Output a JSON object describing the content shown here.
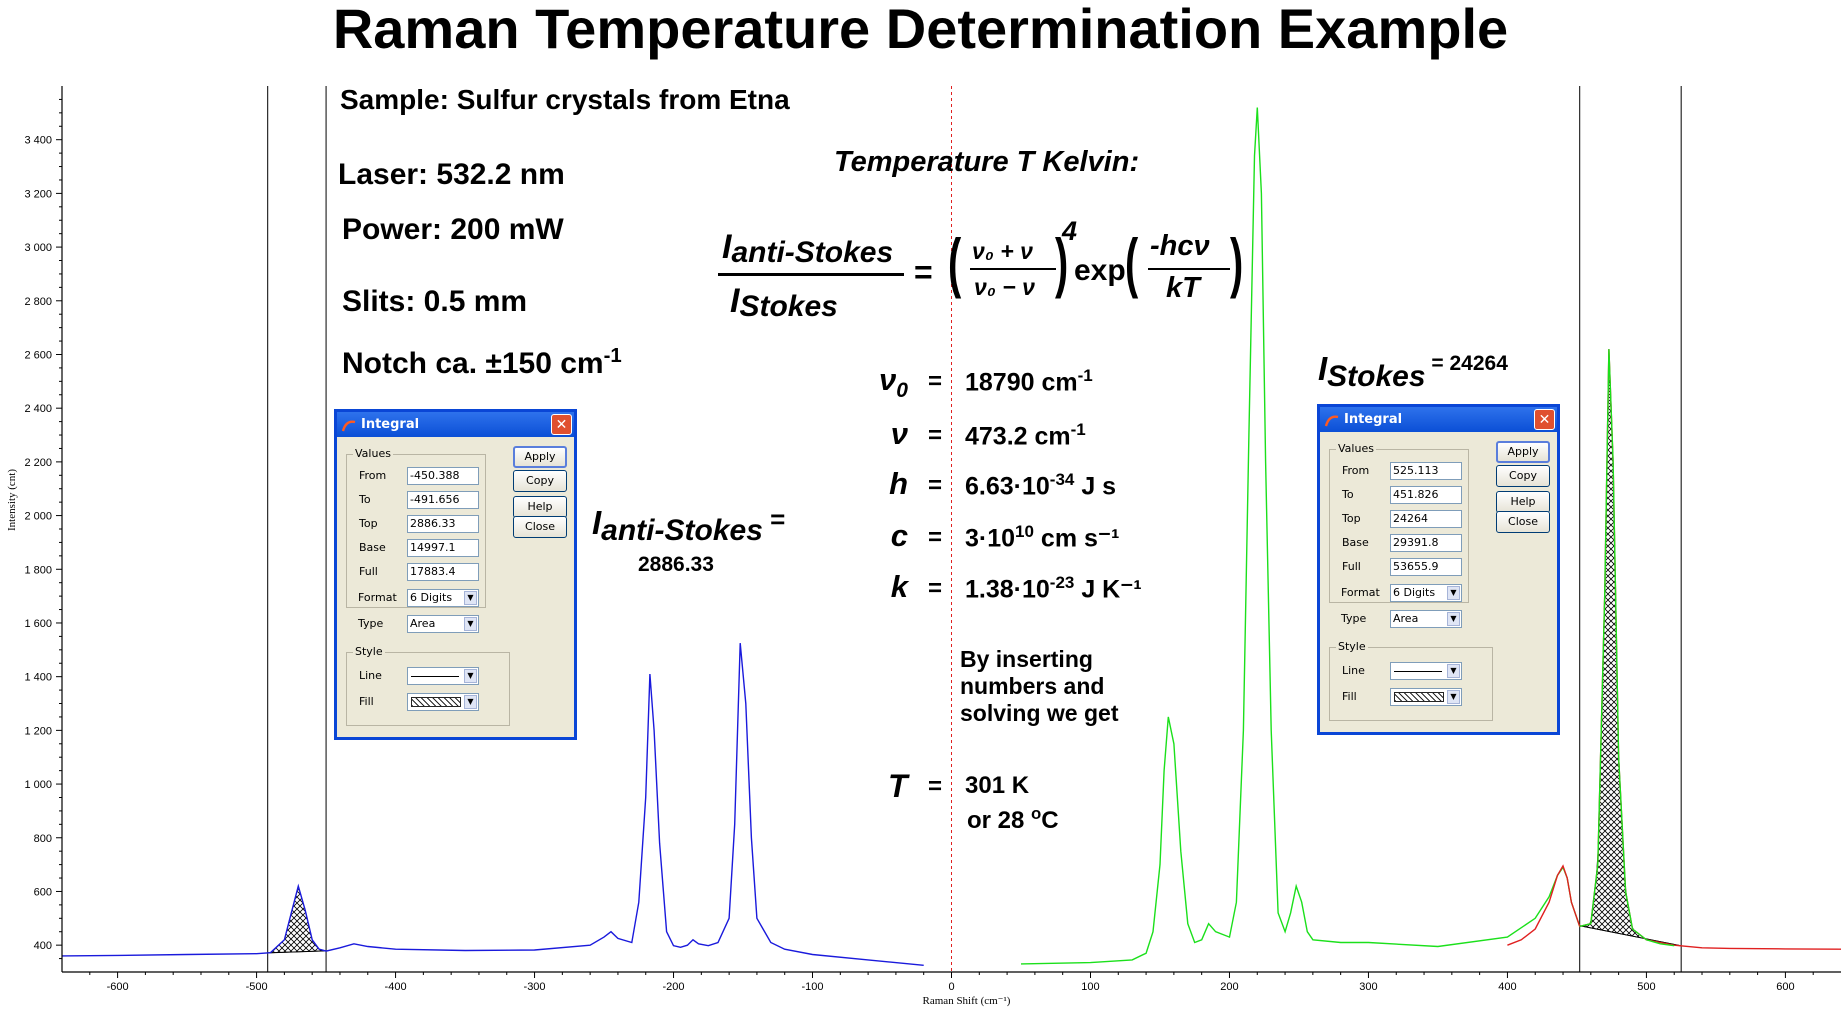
{
  "title": "Raman Temperature Determination Example",
  "sample_info": {
    "sample": "Sample: Sulfur crystals from Etna",
    "laser": "Laser: 532.2 nm",
    "power": "Power: 200 mW",
    "slits": "Slits: 0.5 mm",
    "notch": "Notch ca. ±150 cm",
    "notch_exp": "-1"
  },
  "temperature_heading": "Temperature T Kelvin:",
  "formula": {
    "I": "I",
    "anti_stokes": "anti-Stokes",
    "stokes": "Stokes",
    "equals": "=",
    "nu0_plus_nu": "ν₀ + ν",
    "nu0_minus_nu": "ν₀ − ν",
    "power4": "4",
    "exp": "exp",
    "minus_hcnu": "-hcν",
    "kT": "kT"
  },
  "constants": [
    {
      "symbol": "ν",
      "sub": "0",
      "eq": "=",
      "value": "18790 cm",
      "exp": "-1",
      "tail": ""
    },
    {
      "symbol": "ν",
      "sub": "",
      "eq": "=",
      "value": "473.2 cm",
      "exp": "-1",
      "tail": ""
    },
    {
      "symbol": "h",
      "sub": "",
      "eq": "=",
      "value": "6.63·10",
      "exp": "-34",
      "tail": " J s"
    },
    {
      "symbol": "c",
      "sub": "",
      "eq": "=",
      "value": "3·10",
      "exp": "10",
      "tail": " cm s⁻¹"
    },
    {
      "symbol": "k",
      "sub": "",
      "eq": "=",
      "value": "1.38·10",
      "exp": "-23",
      "tail": " J K⁻¹"
    }
  ],
  "result": {
    "text": "By inserting numbers and solving we get",
    "symbol": "T",
    "eq": "=",
    "kelvin": "301 K",
    "celsius_prefix": "or 28 ",
    "celsius_deg": "o",
    "celsius_unit": "C"
  },
  "anti_stokes_label": {
    "I": "I",
    "sub": "anti-Stokes",
    "eq": " =",
    "value": "2886.33"
  },
  "stokes_label": {
    "I": "I",
    "sub": "Stokes",
    "eq": " = 24264"
  },
  "dialogs": [
    {
      "title": "Integral",
      "values_label": "Values",
      "fields": [
        {
          "label": "From",
          "value": "-450.388"
        },
        {
          "label": "To",
          "value": "-491.656"
        },
        {
          "label": "Top",
          "value": "2886.33"
        },
        {
          "label": "Base",
          "value": "14997.1"
        },
        {
          "label": "Full",
          "value": "17883.4"
        }
      ],
      "format": {
        "label": "Format",
        "value": "6 Digits"
      },
      "type": {
        "label": "Type",
        "value": "Area"
      },
      "style_label": "Style",
      "line_label": "Line",
      "fill_label": "Fill",
      "buttons": [
        "Apply",
        "Copy",
        "Help",
        "Close"
      ],
      "close_glyph": "✕"
    },
    {
      "title": "Integral",
      "values_label": "Values",
      "fields": [
        {
          "label": "From",
          "value": "525.113"
        },
        {
          "label": "To",
          "value": "451.826"
        },
        {
          "label": "Top",
          "value": "24264"
        },
        {
          "label": "Base",
          "value": "29391.8"
        },
        {
          "label": "Full",
          "value": "53655.9"
        }
      ],
      "format": {
        "label": "Format",
        "value": "6 Digits"
      },
      "type": {
        "label": "Type",
        "value": "Area"
      },
      "style_label": "Style",
      "line_label": "Line",
      "fill_label": "Fill",
      "buttons": [
        "Apply",
        "Copy",
        "Help",
        "Close"
      ],
      "close_glyph": "✕"
    }
  ],
  "chart_data": {
    "type": "line",
    "xlabel": "Raman Shift (cm⁻¹)",
    "ylabel": "Intensity (cnt)",
    "xlim": [
      -640,
      640
    ],
    "ylim": [
      300,
      3600
    ],
    "xticks": [
      -600,
      -500,
      -400,
      -300,
      -200,
      -100,
      0,
      100,
      200,
      300,
      400,
      500,
      600
    ],
    "yticks": [
      400,
      600,
      800,
      1000,
      1200,
      1400,
      1600,
      1800,
      2000,
      2200,
      2400,
      2600,
      2800,
      3000,
      3200,
      3400
    ],
    "xtick_labels": [
      "-600",
      "-500",
      "-400",
      "-300",
      "-200",
      "-100",
      "0",
      "100",
      "200",
      "300",
      "400",
      "500",
      "600"
    ],
    "ytick_labels": [
      "400",
      "600",
      "800",
      "1 000",
      "1 200",
      "1 400",
      "1 600",
      "1 800",
      "2 000",
      "2 200",
      "2 400",
      "2 600",
      "2 800",
      "3 000",
      "3 200",
      "3 400"
    ],
    "colors": {
      "anti_stokes": "#1a1adc",
      "stokes": "#1be01b",
      "tail": "#e02020",
      "zero_line": "#e02020",
      "frame": "#000000"
    },
    "series": [
      {
        "color": "#1a1adc",
        "x": [
          -640,
          -600,
          -550,
          -500,
          -490,
          -480,
          -475,
          -470,
          -465,
          -460,
          -455,
          -450,
          -440,
          -430,
          -420,
          -400,
          -350,
          -300,
          -260,
          -250,
          -245,
          -240,
          -230,
          -225,
          -220,
          -217,
          -214,
          -210,
          -205,
          -200,
          -195,
          -190,
          -186,
          -182,
          -175,
          -168,
          -160,
          -156,
          -152,
          -148,
          -144,
          -140,
          -130,
          -120,
          -100,
          -60,
          -20
        ],
        "y": [
          360,
          362,
          365,
          368,
          372,
          420,
          520,
          620,
          530,
          420,
          385,
          378,
          390,
          405,
          395,
          385,
          380,
          382,
          400,
          430,
          450,
          425,
          410,
          560,
          950,
          1410,
          1200,
          780,
          450,
          398,
          392,
          400,
          420,
          405,
          398,
          410,
          500,
          850,
          1525,
          1300,
          800,
          500,
          410,
          385,
          365,
          345,
          325
        ]
      },
      {
        "color": "#1be01b",
        "x": [
          50,
          100,
          130,
          140,
          145,
          150,
          153,
          156,
          160,
          165,
          170,
          175,
          180,
          185,
          190,
          195,
          200,
          205,
          210,
          214,
          218,
          220,
          223,
          226,
          230,
          235,
          240,
          244,
          248,
          252,
          256,
          260,
          280,
          300,
          350,
          400,
          420,
          430,
          436,
          440,
          443,
          446,
          452
        ],
        "y": [
          330,
          335,
          345,
          370,
          450,
          700,
          1050,
          1250,
          1150,
          750,
          480,
          410,
          420,
          480,
          450,
          440,
          430,
          560,
          1200,
          2300,
          3340,
          3520,
          3200,
          2200,
          1200,
          520,
          450,
          520,
          620,
          560,
          450,
          420,
          410,
          410,
          395,
          430,
          500,
          580,
          660,
          690,
          650,
          560,
          470
        ]
      },
      {
        "color": "#e02020",
        "x": [
          400,
          410,
          420,
          430,
          436,
          440,
          443,
          446,
          452,
          460,
          465,
          470,
          473,
          476,
          480,
          485,
          490,
          500,
          520,
          540,
          560,
          600,
          640
        ],
        "y": [
          400,
          420,
          460,
          560,
          660,
          695,
          650,
          560,
          470,
          480,
          700,
          1700,
          2620,
          2200,
          1100,
          600,
          460,
          420,
          400,
          390,
          388,
          386,
          385
        ]
      },
      {
        "color": "#1be01b",
        "x": [
          452,
          460,
          465,
          470,
          473,
          476,
          480,
          485,
          490,
          500,
          510,
          520
        ],
        "y": [
          470,
          480,
          700,
          1700,
          2620,
          2200,
          1100,
          600,
          460,
          420,
          405,
          398
        ]
      }
    ],
    "vertical_markers": [
      -492,
      -450,
      452,
      525,
      0
    ],
    "integrals": [
      {
        "from": -491.656,
        "to": -450.388
      },
      {
        "from": 451.826,
        "to": 525.113
      }
    ]
  }
}
